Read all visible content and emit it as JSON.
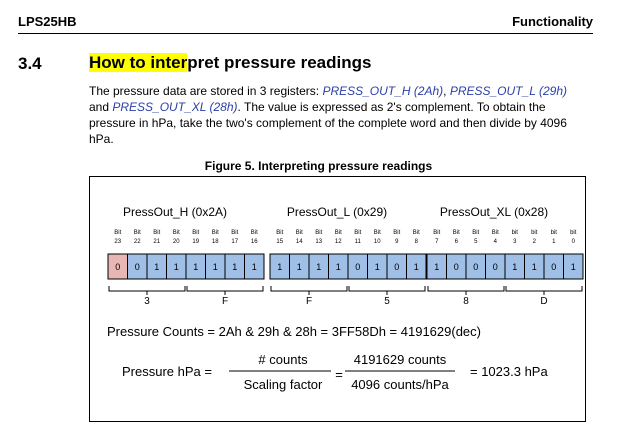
{
  "header": {
    "doc_id": "LPS25HB",
    "section": "Functionality"
  },
  "section": {
    "number": "3.4",
    "title_highlighted": "How to inter",
    "title_rest": "pret pressure readings"
  },
  "paragraph": {
    "t1": "The pressure data are stored in 3 registers: ",
    "reg_h": "PRESS_OUT_H (2Ah)",
    "sep1": ", ",
    "reg_l": "PRESS_OUT_L (29h)",
    "t2": " and ",
    "reg_xl": "PRESS_OUT_XL (28h)",
    "t3": ". The value is expressed as 2's complement. To obtain the pressure in hPa, take the two's complement of the complete word and then divide by 4096 hPa."
  },
  "figure": {
    "caption": "Figure 5. Interpreting pressure readings",
    "registers": [
      {
        "title": "PressOut_H (0x2A)",
        "bits": [
          "23",
          "22",
          "21",
          "20",
          "19",
          "18",
          "17",
          "16"
        ],
        "values": [
          "0",
          "0",
          "1",
          "1",
          "1",
          "1",
          "1",
          "1"
        ],
        "nibbles": [
          "3",
          "F"
        ]
      },
      {
        "title": "PressOut_L (0x29)",
        "bits": [
          "15",
          "14",
          "13",
          "12",
          "11",
          "10",
          "9",
          "8"
        ],
        "values": [
          "1",
          "1",
          "1",
          "1",
          "0",
          "1",
          "0",
          "1"
        ],
        "nibbles": [
          "F",
          "5"
        ]
      },
      {
        "title": "PressOut_XL (0x28)",
        "bits": [
          "7",
          "6",
          "5",
          "4",
          "3",
          "2",
          "1",
          "0"
        ],
        "values": [
          "1",
          "0",
          "0",
          "0",
          "1",
          "1",
          "0",
          "1"
        ],
        "nibbles": [
          "8",
          "D"
        ]
      }
    ],
    "bit_prefixes": [
      "Bit",
      "Bit",
      "Bit",
      "Bit",
      "Bit",
      "Bit",
      "Bit",
      "Bit",
      "Bit",
      "Bit",
      "Bit",
      "Bit",
      "Bit",
      "Bit",
      "Bit",
      "Bit",
      "Bit",
      "Bit",
      "Bit",
      "Bit",
      "bit",
      "bit",
      "bit",
      "bit"
    ],
    "sign_cell_color": "#e8b7b5",
    "cell_color": "#9fbfe6",
    "counts_line": "Pressure Counts = 2Ah & 29h & 28h = 3FF58Dh  = 4191629(dec)",
    "hpa_label": "Pressure hPa  =",
    "frac1_num": "# counts",
    "frac1_den": "Scaling factor",
    "eq_sign": "=",
    "frac2_num": "4191629 counts",
    "frac2_den": "4096 counts/hPa",
    "result": "= 1023.3 hPa"
  }
}
